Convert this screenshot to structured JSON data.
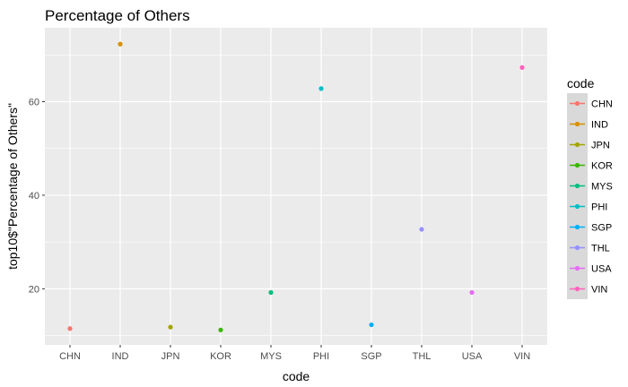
{
  "chart_data": {
    "type": "scatter",
    "title": "Percentage of Others",
    "xlabel": "code",
    "ylabel": "top10$\"Percentage of Others\"",
    "categories": [
      "CHN",
      "IND",
      "JPN",
      "KOR",
      "MYS",
      "PHI",
      "SGP",
      "THL",
      "USA",
      "VIN"
    ],
    "values": [
      11.5,
      72.3,
      11.8,
      11.2,
      19.2,
      62.8,
      12.3,
      32.7,
      19.2,
      67.3
    ],
    "ylim": [
      8.0,
      75.8
    ],
    "yticks": [
      20,
      40,
      60
    ],
    "grid": true,
    "legend": {
      "title": "code",
      "position": "right",
      "entries": [
        "CHN",
        "IND",
        "JPN",
        "KOR",
        "MYS",
        "PHI",
        "SGP",
        "THL",
        "USA",
        "VIN"
      ]
    },
    "colors": [
      "#F8766D",
      "#D89000",
      "#A3A500",
      "#39B600",
      "#00BF7D",
      "#00BFC4",
      "#00B0F6",
      "#9590FF",
      "#E76BF3",
      "#FF62BC"
    ],
    "panel_background": "#EBEBEB",
    "grid_color": "#FFFFFF"
  }
}
